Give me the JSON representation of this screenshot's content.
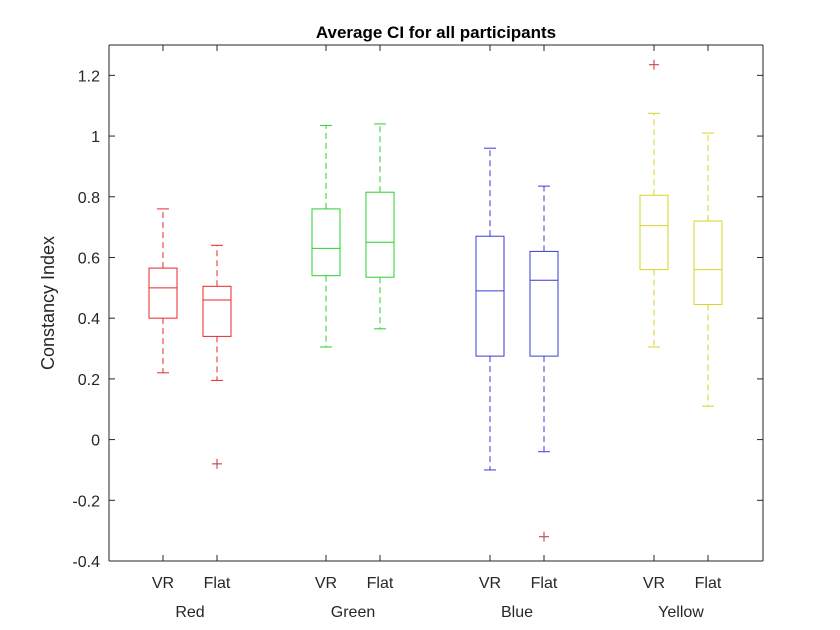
{
  "chart_data": {
    "type": "box",
    "title": "Average CI for all participants",
    "ylabel": "Constancy Index",
    "xlabel": "",
    "ylim": [
      -0.4,
      1.3
    ],
    "yticks": [
      -0.4,
      -0.2,
      0,
      0.2,
      0.4,
      0.6,
      0.8,
      1,
      1.2
    ],
    "ytick_labels": [
      "-0.4",
      "-0.2",
      "0",
      "0.2",
      "0.4",
      "0.6",
      "0.8",
      "1",
      "1.2"
    ],
    "grid": false,
    "groups": [
      {
        "name": "Red",
        "color": "#e8272a",
        "boxes": [
          {
            "label": "VR",
            "whisker_low": 0.22,
            "q1": 0.4,
            "median": 0.5,
            "q3": 0.565,
            "whisker_high": 0.76,
            "outliers": []
          },
          {
            "label": "Flat",
            "whisker_low": 0.195,
            "q1": 0.34,
            "median": 0.46,
            "q3": 0.505,
            "whisker_high": 0.64,
            "outliers": [
              -0.08
            ]
          }
        ]
      },
      {
        "name": "Green",
        "color": "#2bd02b",
        "boxes": [
          {
            "label": "VR",
            "whisker_low": 0.305,
            "q1": 0.54,
            "median": 0.63,
            "q3": 0.76,
            "whisker_high": 1.035,
            "outliers": []
          },
          {
            "label": "Flat",
            "whisker_low": 0.365,
            "q1": 0.535,
            "median": 0.65,
            "q3": 0.815,
            "whisker_high": 1.04,
            "outliers": []
          }
        ]
      },
      {
        "name": "Blue",
        "color": "#3b3bd6",
        "boxes": [
          {
            "label": "VR",
            "whisker_low": -0.1,
            "q1": 0.275,
            "median": 0.49,
            "q3": 0.67,
            "whisker_high": 0.96,
            "outliers": []
          },
          {
            "label": "Flat",
            "whisker_low": -0.04,
            "q1": 0.275,
            "median": 0.525,
            "q3": 0.62,
            "whisker_high": 0.835,
            "outliers": [
              -0.32
            ]
          }
        ]
      },
      {
        "name": "Yellow",
        "color": "#d6d62a",
        "boxes": [
          {
            "label": "VR",
            "whisker_low": 0.305,
            "q1": 0.56,
            "median": 0.705,
            "q3": 0.805,
            "whisker_high": 1.075,
            "outliers": [
              1.235
            ]
          },
          {
            "label": "Flat",
            "whisker_low": 0.11,
            "q1": 0.445,
            "median": 0.56,
            "q3": 0.72,
            "whisker_high": 1.01,
            "outliers": []
          }
        ]
      }
    ],
    "outlier_color": "#c0323a"
  }
}
